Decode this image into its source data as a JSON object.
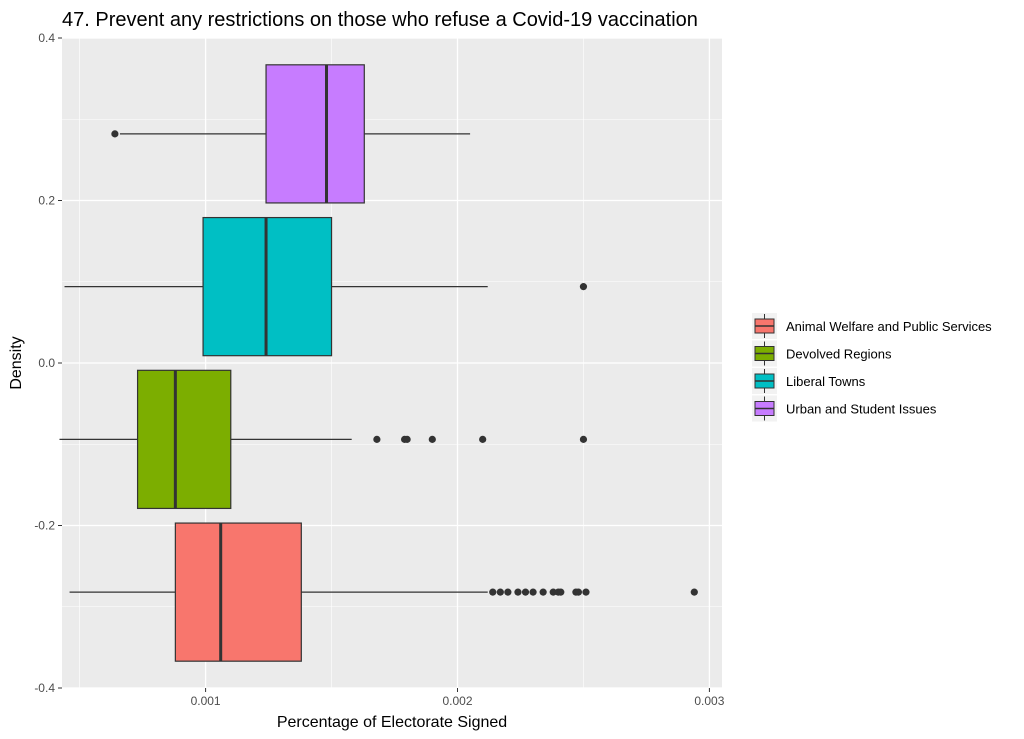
{
  "chart_data": {
    "type": "boxplot",
    "orientation": "horizontal",
    "title": "47. Prevent any restrictions on those who refuse a Covid-19 vaccination",
    "xlabel": "Percentage of Electorate Signed",
    "ylabel": "Density",
    "xlim": [
      0.00043,
      0.00305
    ],
    "ylim": [
      -0.4,
      0.4
    ],
    "x_ticks": [
      {
        "value": 0.001,
        "label": "0.001"
      },
      {
        "value": 0.002,
        "label": "0.002"
      },
      {
        "value": 0.003,
        "label": "0.003"
      }
    ],
    "y_ticks": [
      {
        "value": 0.4,
        "label": "0.4"
      },
      {
        "value": 0.2,
        "label": "0.2"
      },
      {
        "value": 0.0,
        "label": "0.0"
      },
      {
        "value": -0.2,
        "label": "-0.2"
      },
      {
        "value": -0.4,
        "label": "-0.4"
      }
    ],
    "grid": true,
    "legend_position": "right",
    "series": [
      {
        "name": "Animal Welfare and Public Services",
        "color": "#F8766D",
        "y_center": -0.282,
        "box_half_height": 0.085,
        "whisker_low": 0.00046,
        "q1": 0.00088,
        "median": 0.00106,
        "q3": 0.00138,
        "whisker_high": 0.00212,
        "outliers": [
          0.00214,
          0.00217,
          0.0022,
          0.00224,
          0.00227,
          0.0023,
          0.00234,
          0.00238,
          0.0024,
          0.00241,
          0.00247,
          0.00248,
          0.00251,
          0.00294
        ]
      },
      {
        "name": "Devolved Regions",
        "color": "#7CAE00",
        "y_center": -0.094,
        "box_half_height": 0.085,
        "whisker_low": 0.00042,
        "q1": 0.00073,
        "median": 0.00088,
        "q3": 0.0011,
        "whisker_high": 0.00158,
        "outliers": [
          0.00168,
          0.00179,
          0.0018,
          0.0019,
          0.0021,
          0.0025
        ]
      },
      {
        "name": "Liberal Towns",
        "color": "#00BFC4",
        "y_center": 0.094,
        "box_half_height": 0.085,
        "whisker_low": 0.00044,
        "q1": 0.00099,
        "median": 0.00124,
        "q3": 0.0015,
        "whisker_high": 0.00212,
        "outliers": [
          0.0025
        ]
      },
      {
        "name": "Urban and Student Issues",
        "color": "#C77CFF",
        "y_center": 0.282,
        "box_half_height": 0.085,
        "whisker_low": 0.00066,
        "q1": 0.00124,
        "median": 0.00148,
        "q3": 0.00163,
        "whisker_high": 0.00205,
        "outliers": [
          0.00064
        ]
      }
    ]
  }
}
